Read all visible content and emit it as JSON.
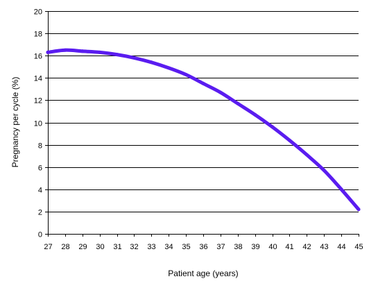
{
  "chart_data": {
    "type": "line",
    "title": "",
    "xlabel": "Patient age (years)",
    "ylabel": "Pregnancy per cycle (%)",
    "xlim": [
      27,
      45
    ],
    "ylim": [
      0,
      20
    ],
    "x_ticks": [
      "27",
      "28",
      "29",
      "30",
      "31",
      "32",
      "33",
      "34",
      "35",
      "36",
      "37",
      "38",
      "39",
      "40",
      "41",
      "42",
      "43",
      "44",
      "45"
    ],
    "y_ticks": [
      "0",
      "2",
      "4",
      "6",
      "8",
      "10",
      "12",
      "14",
      "16",
      "18",
      "20"
    ],
    "grid": true,
    "series": [
      {
        "color": "#5a1cf0",
        "x": [
          27,
          28,
          29,
          30,
          31,
          32,
          33,
          34,
          35,
          36,
          37,
          38,
          39,
          40,
          41,
          42,
          43,
          44,
          45
        ],
        "y": [
          16.3,
          16.5,
          16.4,
          16.3,
          16.1,
          15.8,
          15.4,
          14.9,
          14.3,
          13.5,
          12.7,
          11.7,
          10.7,
          9.6,
          8.4,
          7.1,
          5.7,
          4.0,
          2.2
        ]
      }
    ]
  }
}
